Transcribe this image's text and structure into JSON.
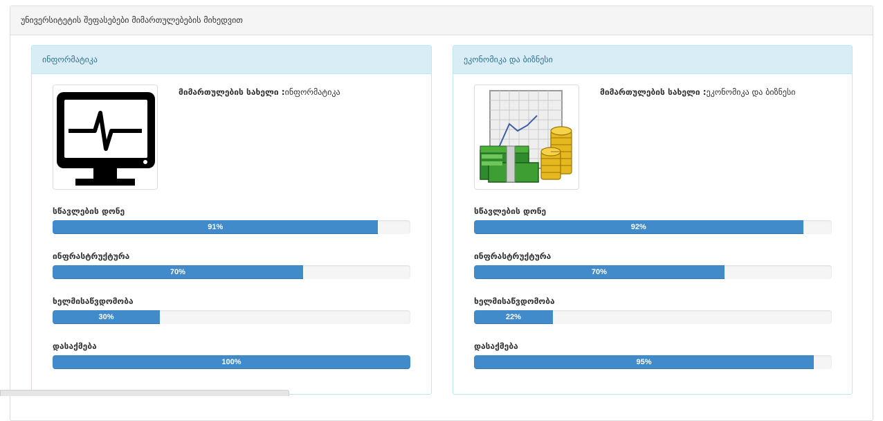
{
  "page": {
    "header_title": "უნივერსიტეტის შეფასებები მიმართულებების მიხედვით"
  },
  "departments": [
    {
      "panel_title": "ინფორმატიკა",
      "name_label": "მიმართულების სახელი :",
      "name_value": "ინფორმატიკა",
      "image_icon": "computer-monitor-heartbeat-icon",
      "metrics": [
        {
          "label": "სწავლების დონე",
          "value": 91,
          "text": "91%"
        },
        {
          "label": "ინფრასტრუქტურა",
          "value": 70,
          "text": "70%"
        },
        {
          "label": "ხელმისაწვდომობა",
          "value": 30,
          "text": "30%"
        },
        {
          "label": "დასაქმება",
          "value": 100,
          "text": "100%"
        }
      ]
    },
    {
      "panel_title": "ეკონომიკა და ბიზნესი",
      "name_label": "მიმართულების სახელი :",
      "name_value": "ეკონომიკა და ბიზნესი",
      "image_icon": "money-chart-coins-icon",
      "metrics": [
        {
          "label": "სწავლების დონე",
          "value": 92,
          "text": "92%"
        },
        {
          "label": "ინფრასტრუქტურა",
          "value": 70,
          "text": "70%"
        },
        {
          "label": "ხელმისაწვდომობა",
          "value": 22,
          "text": "22%"
        },
        {
          "label": "დასაქმება",
          "value": 95,
          "text": "95%"
        }
      ]
    }
  ],
  "colors": {
    "progress_fill": "#428bca",
    "panel_head_bg": "#d9edf7",
    "panel_head_text": "#31708f"
  }
}
